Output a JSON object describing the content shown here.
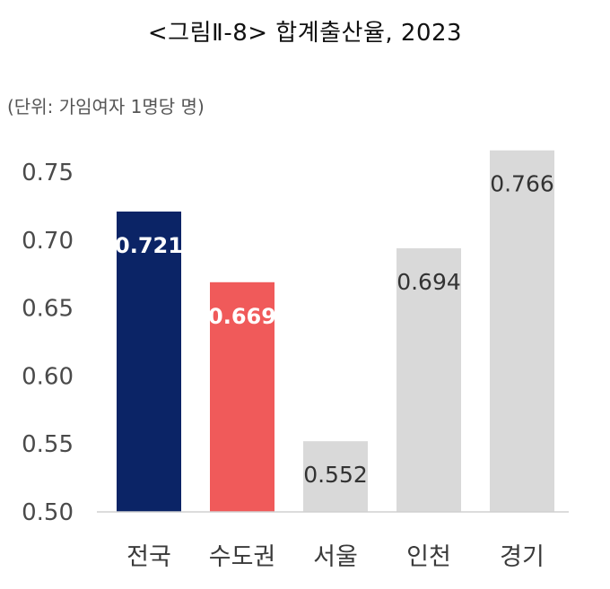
{
  "title": "<그림Ⅱ-8> 합계출산율, 2023",
  "unit_note": "(단위: 가임여자 1명당 명)",
  "chart_data": {
    "type": "bar",
    "title": "<그림Ⅱ-8> 합계출산율, 2023",
    "xlabel": "",
    "ylabel": "",
    "categories": [
      "전국",
      "수도권",
      "서울",
      "인천",
      "경기"
    ],
    "values": [
      0.721,
      0.669,
      0.552,
      0.694,
      0.766
    ],
    "data_labels": [
      "0.721",
      "0.669",
      "0.552",
      "0.694",
      "0.766"
    ],
    "bar_colors": [
      "#0b2466",
      "#f05a5a",
      "#d9d9d9",
      "#d9d9d9",
      "#d9d9d9"
    ],
    "label_colors": [
      "#ffffff",
      "#ffffff",
      "#333333",
      "#333333",
      "#333333"
    ],
    "ylim": [
      0.5,
      0.75
    ],
    "yticks": [
      "0.50",
      "0.55",
      "0.60",
      "0.65",
      "0.70",
      "0.75"
    ],
    "grid": false,
    "legend": "none"
  }
}
